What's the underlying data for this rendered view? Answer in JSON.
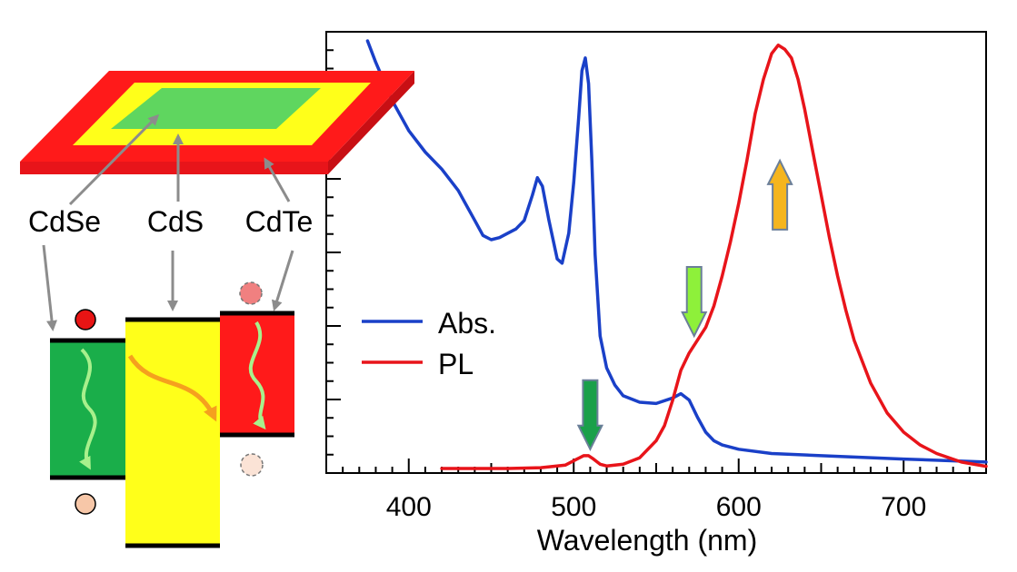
{
  "chart_data": {
    "type": "line",
    "xlabel": "Wavelength (nm)",
    "ylabel": "",
    "xlim": [
      350,
      750
    ],
    "ylim": [
      0,
      1.0
    ],
    "x_ticks": [
      400,
      500,
      600,
      700
    ],
    "grid": false,
    "legend_position": "center-left",
    "series": [
      {
        "name": "Abs.",
        "color": "#1a40c8",
        "x": [
          375,
          380,
          390,
          400,
          410,
          420,
          430,
          440,
          445,
          450,
          455,
          460,
          465,
          470,
          475,
          478,
          481,
          485,
          490,
          493,
          497,
          500,
          503,
          505,
          507,
          509,
          511,
          513,
          516,
          520,
          525,
          530,
          540,
          550,
          560,
          565,
          570,
          575,
          580,
          585,
          590,
          600,
          620,
          650,
          700,
          750
        ],
        "y": [
          1.0,
          0.95,
          0.86,
          0.79,
          0.74,
          0.7,
          0.65,
          0.58,
          0.545,
          0.535,
          0.54,
          0.55,
          0.56,
          0.58,
          0.64,
          0.68,
          0.66,
          0.58,
          0.49,
          0.48,
          0.55,
          0.67,
          0.82,
          0.93,
          0.96,
          0.9,
          0.72,
          0.5,
          0.31,
          0.235,
          0.195,
          0.17,
          0.155,
          0.152,
          0.165,
          0.175,
          0.16,
          0.12,
          0.085,
          0.065,
          0.055,
          0.045,
          0.035,
          0.03,
          0.022,
          0.015
        ]
      },
      {
        "name": "PL",
        "color": "#e8141a",
        "x": [
          420,
          440,
          460,
          480,
          495,
          502,
          506,
          509,
          512,
          516,
          520,
          530,
          540,
          550,
          555,
          560,
          565,
          570,
          575,
          580,
          585,
          590,
          595,
          600,
          605,
          610,
          615,
          620,
          624,
          628,
          632,
          636,
          640,
          645,
          650,
          655,
          660,
          665,
          670,
          680,
          690,
          700,
          710,
          720,
          735,
          750
        ],
        "y": [
          0.0,
          0.0,
          0.0,
          0.002,
          0.008,
          0.022,
          0.03,
          0.03,
          0.022,
          0.01,
          0.006,
          0.01,
          0.025,
          0.065,
          0.1,
          0.16,
          0.23,
          0.27,
          0.3,
          0.33,
          0.38,
          0.45,
          0.53,
          0.62,
          0.72,
          0.83,
          0.91,
          0.97,
          0.99,
          0.98,
          0.96,
          0.91,
          0.84,
          0.74,
          0.64,
          0.54,
          0.45,
          0.37,
          0.3,
          0.2,
          0.13,
          0.085,
          0.055,
          0.035,
          0.015,
          0.005
        ]
      }
    ],
    "annotations": [
      {
        "kind": "down-arrow",
        "x": 510,
        "y": 0.045,
        "color": "#1aa04a"
      },
      {
        "kind": "down-arrow",
        "x": 573,
        "y": 0.31,
        "color": "#8ef03a"
      },
      {
        "kind": "up-arrow",
        "x": 625,
        "y": 0.72,
        "color": "#f5b51e"
      }
    ]
  },
  "schematic": {
    "material_labels": [
      "CdSe",
      "CdS",
      "CdTe"
    ],
    "colors": {
      "cdse": "#1aae4a",
      "cdse_face": "#5fd65f",
      "cds": "#ffff1a",
      "cdte": "#ff1a1a",
      "arrow_gray": "#8c8c8c",
      "electron": "#e81414",
      "hole": "#f7c7a8"
    }
  }
}
